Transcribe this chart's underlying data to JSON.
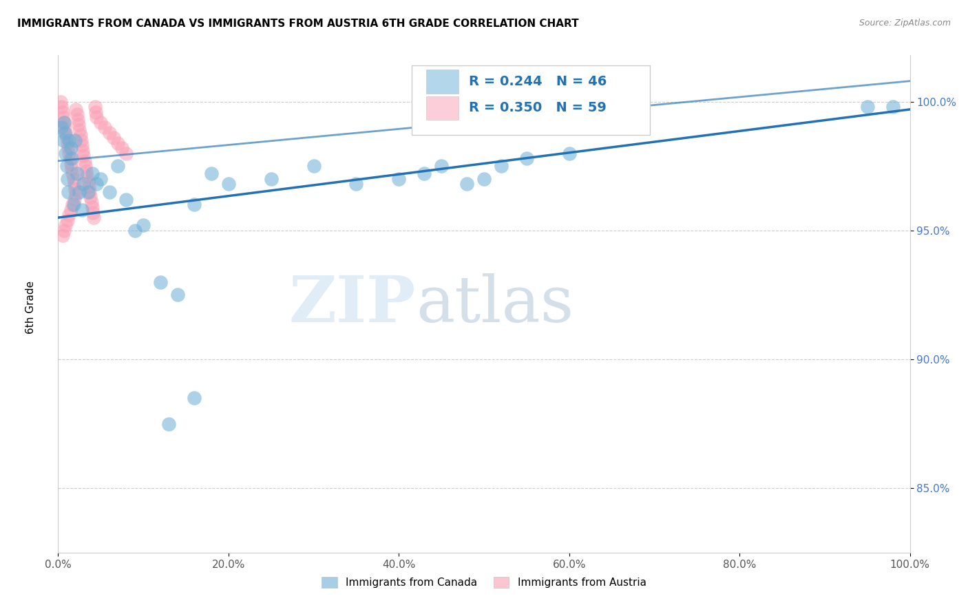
{
  "title": "IMMIGRANTS FROM CANADA VS IMMIGRANTS FROM AUSTRIA 6TH GRADE CORRELATION CHART",
  "source": "Source: ZipAtlas.com",
  "ylabel": "6th Grade",
  "yticks": [
    0.85,
    0.9,
    0.95,
    1.0
  ],
  "ytick_labels": [
    "85.0%",
    "90.0%",
    "95.0%",
    "100.0%"
  ],
  "xmin": 0.0,
  "xmax": 1.0,
  "ymin": 0.825,
  "ymax": 1.018,
  "canada_color": "#6baed6",
  "austria_color": "#fa9fb5",
  "trendline_color": "#2171b5",
  "legend_R_canada": "R = 0.244",
  "legend_N_canada": "N = 46",
  "legend_R_austria": "R = 0.350",
  "legend_N_austria": "N = 59",
  "canada_x": [
    0.004,
    0.006,
    0.007,
    0.008,
    0.009,
    0.01,
    0.011,
    0.012,
    0.013,
    0.015,
    0.016,
    0.018,
    0.02,
    0.022,
    0.025,
    0.028,
    0.03,
    0.035,
    0.04,
    0.045,
    0.05,
    0.06,
    0.07,
    0.08,
    0.09,
    0.1,
    0.12,
    0.14,
    0.16,
    0.18,
    0.2,
    0.25,
    0.3,
    0.35,
    0.4,
    0.43,
    0.45,
    0.48,
    0.5,
    0.52,
    0.55,
    0.6,
    0.13,
    0.16,
    0.95,
    0.98
  ],
  "canada_y": [
    0.99,
    0.985,
    0.992,
    0.988,
    0.98,
    0.975,
    0.97,
    0.965,
    0.985,
    0.982,
    0.978,
    0.96,
    0.985,
    0.972,
    0.965,
    0.958,
    0.968,
    0.965,
    0.972,
    0.968,
    0.97,
    0.965,
    0.975,
    0.962,
    0.95,
    0.952,
    0.93,
    0.925,
    0.96,
    0.972,
    0.968,
    0.97,
    0.975,
    0.968,
    0.97,
    0.972,
    0.975,
    0.968,
    0.97,
    0.975,
    0.978,
    0.98,
    0.875,
    0.885,
    0.998,
    0.998
  ],
  "austria_x": [
    0.003,
    0.004,
    0.005,
    0.006,
    0.007,
    0.008,
    0.009,
    0.01,
    0.011,
    0.012,
    0.013,
    0.014,
    0.015,
    0.016,
    0.017,
    0.018,
    0.019,
    0.02,
    0.021,
    0.022,
    0.023,
    0.024,
    0.025,
    0.026,
    0.027,
    0.028,
    0.029,
    0.03,
    0.031,
    0.032,
    0.033,
    0.034,
    0.035,
    0.036,
    0.037,
    0.038,
    0.039,
    0.04,
    0.041,
    0.042,
    0.043,
    0.044,
    0.045,
    0.05,
    0.055,
    0.06,
    0.065,
    0.07,
    0.075,
    0.08,
    0.005,
    0.007,
    0.009,
    0.011,
    0.013,
    0.015,
    0.017,
    0.019,
    0.021
  ],
  "austria_y": [
    1.0,
    0.998,
    0.996,
    0.994,
    0.992,
    0.99,
    0.988,
    0.986,
    0.984,
    0.982,
    0.98,
    0.978,
    0.976,
    0.974,
    0.972,
    0.97,
    0.968,
    0.966,
    0.997,
    0.995,
    0.993,
    0.991,
    0.989,
    0.987,
    0.985,
    0.983,
    0.981,
    0.979,
    0.977,
    0.975,
    0.973,
    0.971,
    0.969,
    0.967,
    0.965,
    0.963,
    0.961,
    0.959,
    0.957,
    0.955,
    0.998,
    0.996,
    0.994,
    0.992,
    0.99,
    0.988,
    0.986,
    0.984,
    0.982,
    0.98,
    0.948,
    0.95,
    0.952,
    0.954,
    0.956,
    0.958,
    0.96,
    0.962,
    0.964
  ],
  "canada_trend_x": [
    0.0,
    1.0
  ],
  "canada_trend_y": [
    0.955,
    0.997
  ],
  "austria_trend_x": [
    0.0,
    1.0
  ],
  "austria_trend_y": [
    0.977,
    1.008
  ],
  "watermark_zip": "ZIP",
  "watermark_atlas": "atlas",
  "grid_color": "#cccccc"
}
